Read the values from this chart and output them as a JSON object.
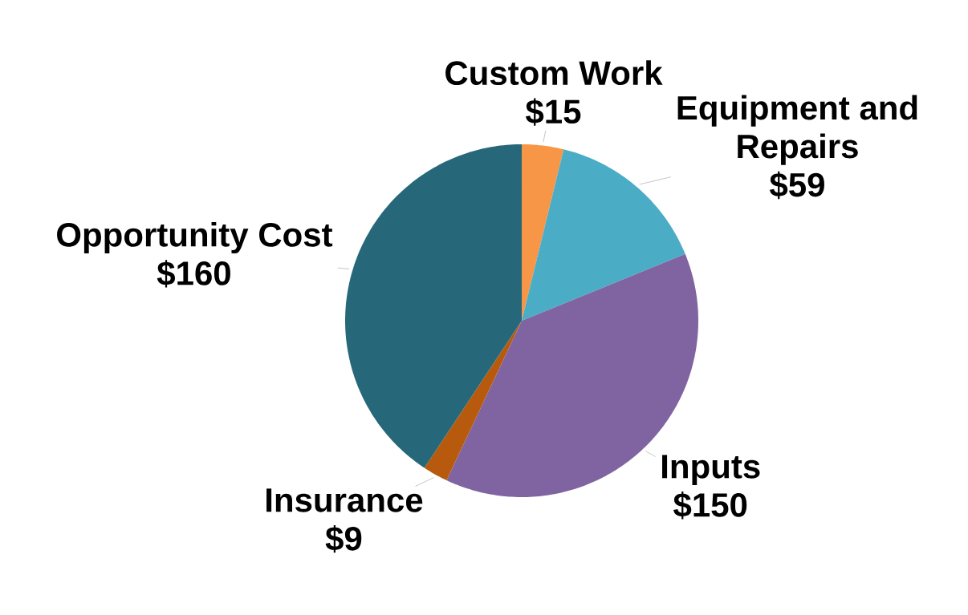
{
  "chart_data": {
    "type": "pie",
    "categories": [
      "Custom Work",
      "Equipment and Repairs",
      "Inputs",
      "Insurance",
      "Opportunity Cost"
    ],
    "values": [
      15,
      59,
      150,
      9,
      160
    ],
    "value_labels": [
      "$15",
      "$59",
      "$150",
      "$9",
      "$160"
    ],
    "colors": [
      "#f79646",
      "#4bacc6",
      "#8064a2",
      "#b85a0d",
      "#26687a"
    ]
  }
}
